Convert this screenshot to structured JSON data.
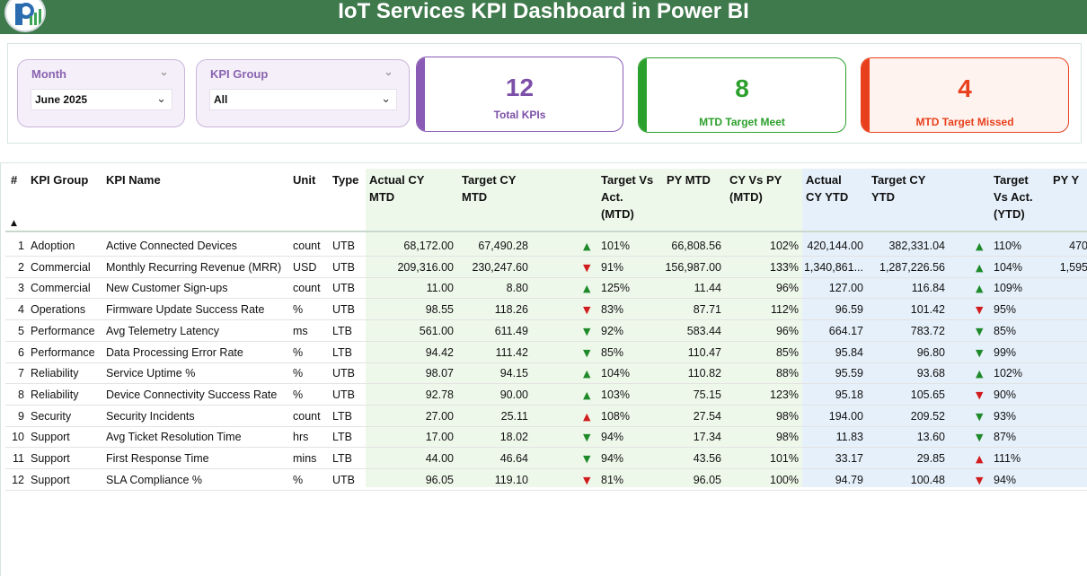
{
  "header": {
    "title": "IoT Services KPI Dashboard in Power BI"
  },
  "filters": {
    "month": {
      "label": "Month",
      "value": "June 2025"
    },
    "kpi_group": {
      "label": "KPI Group",
      "value": "All"
    }
  },
  "cards": {
    "total": {
      "value": "12",
      "label": "Total KPIs",
      "color": "#8a5bb5"
    },
    "meet": {
      "value": "8",
      "label": "MTD Target Meet",
      "color": "#2ca02c"
    },
    "missed": {
      "value": "4",
      "label": "MTD Target Missed",
      "color": "#e8401c"
    }
  },
  "table": {
    "headers": {
      "num": "#",
      "group": "KPI Group",
      "name": "KPI Name",
      "unit": "Unit",
      "type": "Type",
      "actual_mtd": "Actual CY\nMTD",
      "target_mtd": "Target CY\nMTD",
      "tva_mtd": "Target Vs\nAct.\n(MTD)",
      "py_mtd": "PY MTD",
      "cyvpy_mtd": "CY Vs PY\n(MTD)",
      "actual_ytd": "Actual\nCY YTD",
      "target_ytd": "Target CY\nYTD",
      "tva_ytd": "Target\nVs Act.\n(YTD)",
      "py_ytd": "PY Y"
    },
    "rows": [
      {
        "num": "1",
        "group": "Adoption",
        "name": "Active Connected Devices",
        "unit": "count",
        "type": "UTB",
        "actual_mtd": "68,172.00",
        "target_mtd": "67,490.28",
        "arrow_mtd": "up",
        "tva_mtd": "101%",
        "py_mtd": "66,808.56",
        "cyvpy_mtd": "102%",
        "actual_ytd": "420,144.00",
        "target_ytd": "382,331.04",
        "arrow_ytd": "up",
        "tva_ytd": "110%",
        "py_ytd": "470"
      },
      {
        "num": "2",
        "group": "Commercial",
        "name": "Monthly Recurring Revenue (MRR)",
        "unit": "USD",
        "type": "UTB",
        "actual_mtd": "209,316.00",
        "target_mtd": "230,247.60",
        "arrow_mtd": "down",
        "tva_mtd": "91%",
        "py_mtd": "156,987.00",
        "cyvpy_mtd": "133%",
        "actual_ytd": "1,340,861...",
        "target_ytd": "1,287,226.56",
        "arrow_ytd": "up",
        "tva_ytd": "104%",
        "py_ytd": "1,595"
      },
      {
        "num": "3",
        "group": "Commercial",
        "name": "New Customer Sign-ups",
        "unit": "count",
        "type": "UTB",
        "actual_mtd": "11.00",
        "target_mtd": "8.80",
        "arrow_mtd": "up",
        "tva_mtd": "125%",
        "py_mtd": "11.44",
        "cyvpy_mtd": "96%",
        "actual_ytd": "127.00",
        "target_ytd": "116.84",
        "arrow_ytd": "up",
        "tva_ytd": "109%",
        "py_ytd": ""
      },
      {
        "num": "4",
        "group": "Operations",
        "name": "Firmware Update Success Rate",
        "unit": "%",
        "type": "UTB",
        "actual_mtd": "98.55",
        "target_mtd": "118.26",
        "arrow_mtd": "down",
        "tva_mtd": "83%",
        "py_mtd": "87.71",
        "cyvpy_mtd": "112%",
        "actual_ytd": "96.59",
        "target_ytd": "101.42",
        "arrow_ytd": "down",
        "tva_ytd": "95%",
        "py_ytd": ""
      },
      {
        "num": "5",
        "group": "Performance",
        "name": "Avg Telemetry Latency",
        "unit": "ms",
        "type": "LTB",
        "actual_mtd": "561.00",
        "target_mtd": "611.49",
        "arrow_mtd": "down-good",
        "tva_mtd": "92%",
        "py_mtd": "583.44",
        "cyvpy_mtd": "96%",
        "actual_ytd": "664.17",
        "target_ytd": "783.72",
        "arrow_ytd": "down-good",
        "tva_ytd": "85%",
        "py_ytd": ""
      },
      {
        "num": "6",
        "group": "Performance",
        "name": "Data Processing Error Rate",
        "unit": "%",
        "type": "LTB",
        "actual_mtd": "94.42",
        "target_mtd": "111.42",
        "arrow_mtd": "down-good",
        "tva_mtd": "85%",
        "py_mtd": "110.47",
        "cyvpy_mtd": "85%",
        "actual_ytd": "95.84",
        "target_ytd": "96.80",
        "arrow_ytd": "down-good",
        "tva_ytd": "99%",
        "py_ytd": ""
      },
      {
        "num": "7",
        "group": "Reliability",
        "name": "Service Uptime %",
        "unit": "%",
        "type": "UTB",
        "actual_mtd": "98.07",
        "target_mtd": "94.15",
        "arrow_mtd": "up",
        "tva_mtd": "104%",
        "py_mtd": "110.82",
        "cyvpy_mtd": "88%",
        "actual_ytd": "95.59",
        "target_ytd": "93.68",
        "arrow_ytd": "up",
        "tva_ytd": "102%",
        "py_ytd": ""
      },
      {
        "num": "8",
        "group": "Reliability",
        "name": "Device Connectivity Success Rate",
        "unit": "%",
        "type": "UTB",
        "actual_mtd": "92.78",
        "target_mtd": "90.00",
        "arrow_mtd": "up",
        "tva_mtd": "103%",
        "py_mtd": "75.15",
        "cyvpy_mtd": "123%",
        "actual_ytd": "95.18",
        "target_ytd": "105.65",
        "arrow_ytd": "down",
        "tva_ytd": "90%",
        "py_ytd": ""
      },
      {
        "num": "9",
        "group": "Security",
        "name": "Security Incidents",
        "unit": "count",
        "type": "LTB",
        "actual_mtd": "27.00",
        "target_mtd": "25.11",
        "arrow_mtd": "up-bad",
        "tva_mtd": "108%",
        "py_mtd": "27.54",
        "cyvpy_mtd": "98%",
        "actual_ytd": "194.00",
        "target_ytd": "209.52",
        "arrow_ytd": "down-good",
        "tva_ytd": "93%",
        "py_ytd": ""
      },
      {
        "num": "10",
        "group": "Support",
        "name": "Avg Ticket Resolution Time",
        "unit": "hrs",
        "type": "LTB",
        "actual_mtd": "17.00",
        "target_mtd": "18.02",
        "arrow_mtd": "down-good",
        "tva_mtd": "94%",
        "py_mtd": "17.34",
        "cyvpy_mtd": "98%",
        "actual_ytd": "11.83",
        "target_ytd": "13.60",
        "arrow_ytd": "down-good",
        "tva_ytd": "87%",
        "py_ytd": ""
      },
      {
        "num": "11",
        "group": "Support",
        "name": "First Response Time",
        "unit": "mins",
        "type": "LTB",
        "actual_mtd": "44.00",
        "target_mtd": "46.64",
        "arrow_mtd": "down-good",
        "tva_mtd": "94%",
        "py_mtd": "43.56",
        "cyvpy_mtd": "101%",
        "actual_ytd": "33.17",
        "target_ytd": "29.85",
        "arrow_ytd": "up-bad",
        "tva_ytd": "111%",
        "py_ytd": ""
      },
      {
        "num": "12",
        "group": "Support",
        "name": "SLA Compliance %",
        "unit": "%",
        "type": "UTB",
        "actual_mtd": "96.05",
        "target_mtd": "119.10",
        "arrow_mtd": "down",
        "tva_mtd": "81%",
        "py_mtd": "96.05",
        "cyvpy_mtd": "100%",
        "actual_ytd": "94.79",
        "target_ytd": "100.48",
        "arrow_ytd": "down",
        "tva_ytd": "94%",
        "py_ytd": ""
      }
    ]
  },
  "colors": {
    "mtd_band": "#eef8ea",
    "ytd_band": "#e6f0fa",
    "up": "#1e8a2a",
    "down": "#d01c1c"
  },
  "icons": {
    "logo": "kpi-logo-icon",
    "sort": "sort-ascending-icon"
  }
}
